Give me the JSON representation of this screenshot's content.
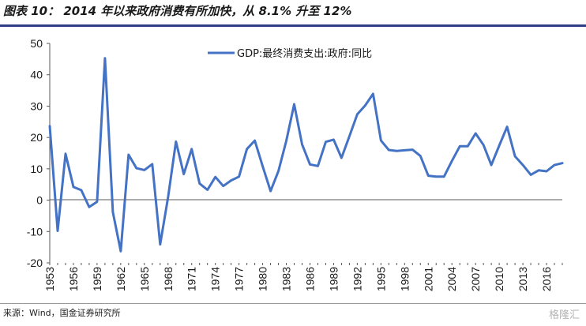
{
  "title": "图表 10： 2014 年以来政府消费有所加快，从 8.1% 升至 12%",
  "source": "来源：Wind，国金证券研究所",
  "watermark": "格隆汇",
  "colors": {
    "series": "#4472c4",
    "axis": "#595959",
    "title_rule": "#2e3f86"
  },
  "chart_data": {
    "type": "line",
    "title": "",
    "xlabel": "",
    "ylabel": "",
    "ylim": [
      -20,
      50
    ],
    "yticks": [
      -20,
      -10,
      0,
      10,
      20,
      30,
      40,
      50
    ],
    "grid": false,
    "legend_position": "top-center",
    "x": [
      1953,
      1954,
      1955,
      1956,
      1957,
      1958,
      1959,
      1960,
      1961,
      1962,
      1963,
      1964,
      1965,
      1966,
      1967,
      1968,
      1969,
      1970,
      1971,
      1972,
      1973,
      1974,
      1975,
      1976,
      1977,
      1978,
      1979,
      1980,
      1981,
      1982,
      1983,
      1984,
      1985,
      1986,
      1987,
      1988,
      1989,
      1990,
      1991,
      1992,
      1993,
      1994,
      1995,
      1996,
      1997,
      1998,
      1999,
      2000,
      2001,
      2002,
      2003,
      2004,
      2005,
      2006,
      2007,
      2008,
      2009,
      2010,
      2011,
      2012,
      2013,
      2014,
      2015,
      2016,
      2017,
      2018
    ],
    "xticks": [
      "1953",
      "1956",
      "1959",
      "1962",
      "1965",
      "1968",
      "1971",
      "1974",
      "1977",
      "1980",
      "1983",
      "1986",
      "1989",
      "1992",
      "1995",
      "1998",
      "2001",
      "2004",
      "2007",
      "2010",
      "2013",
      "2016"
    ],
    "series": [
      {
        "name": "GDP:最终消费支出:政府:同比",
        "values": [
          23.6,
          -9.8,
          14.8,
          4.2,
          3.2,
          -2.2,
          -0.5,
          45.3,
          -3.8,
          -16.3,
          14.5,
          10.2,
          9.6,
          11.5,
          -14.1,
          0.9,
          18.7,
          8.3,
          16.3,
          5.3,
          3.3,
          7.4,
          4.5,
          6.3,
          7.5,
          16.3,
          19.0,
          10.8,
          2.9,
          9.3,
          18.9,
          30.6,
          17.8,
          11.4,
          10.9,
          18.6,
          19.3,
          13.5,
          20.4,
          27.4,
          30.2,
          33.9,
          19.0,
          16.0,
          15.7,
          15.9,
          16.1,
          14.1,
          7.8,
          7.5,
          7.5,
          12.5,
          17.2,
          17.2,
          21.3,
          17.6,
          11.2,
          17.4,
          23.4,
          14.0,
          11.2,
          8.1,
          9.5,
          9.2,
          11.2,
          11.8
        ]
      }
    ]
  }
}
